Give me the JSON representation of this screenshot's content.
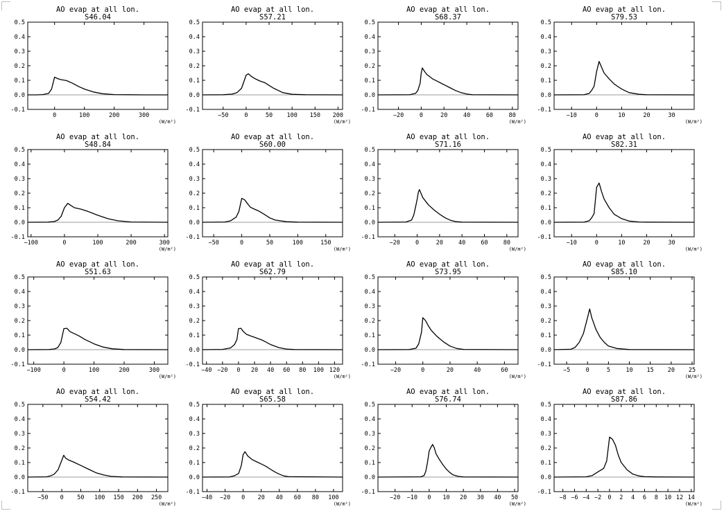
{
  "page": {
    "background": "#ffffff",
    "line_color": "#000000",
    "zero_line_color": "#999999"
  },
  "chart_data": [
    {
      "type": "line",
      "title": "AO evap at all lon.",
      "subtitle": "S46.04",
      "xunit": "(W/m²)",
      "xlim": [
        -90,
        380
      ],
      "ylim": [
        -0.1,
        0.5
      ],
      "xticks": [
        0,
        100,
        200,
        300
      ],
      "yticks": [
        -0.1,
        0.0,
        0.1,
        0.2,
        0.3,
        0.4,
        0.5
      ],
      "x": [
        -90,
        -60,
        -40,
        -20,
        -10,
        0,
        10,
        20,
        40,
        60,
        80,
        100,
        130,
        160,
        200,
        250,
        300,
        380
      ],
      "y": [
        0,
        0,
        0.002,
        0.01,
        0.04,
        0.122,
        0.112,
        0.105,
        0.098,
        0.08,
        0.058,
        0.04,
        0.02,
        0.008,
        0.002,
        0.001,
        0,
        0
      ]
    },
    {
      "type": "line",
      "title": "AO evap at all lon.",
      "subtitle": "S57.21",
      "xunit": "(W/m²)",
      "xlim": [
        -95,
        210
      ],
      "ylim": [
        -0.1,
        0.5
      ],
      "xticks": [
        -50,
        0,
        50,
        100,
        150,
        200
      ],
      "yticks": [
        -0.1,
        0.0,
        0.1,
        0.2,
        0.3,
        0.4,
        0.5
      ],
      "x": [
        -95,
        -50,
        -30,
        -20,
        -10,
        -5,
        0,
        5,
        10,
        20,
        30,
        40,
        50,
        60,
        80,
        100,
        130,
        210
      ],
      "y": [
        0,
        0.001,
        0.005,
        0.015,
        0.045,
        0.09,
        0.135,
        0.145,
        0.13,
        0.11,
        0.095,
        0.085,
        0.065,
        0.045,
        0.015,
        0.004,
        0.001,
        0
      ]
    },
    {
      "type": "line",
      "title": "AO evap at all lon.",
      "subtitle": "S68.37",
      "xunit": "(W/m²)",
      "xlim": [
        -38,
        85
      ],
      "ylim": [
        -0.1,
        0.5
      ],
      "xticks": [
        -20,
        0,
        20,
        40,
        60,
        80
      ],
      "yticks": [
        -0.1,
        0.0,
        0.1,
        0.2,
        0.3,
        0.4,
        0.5
      ],
      "x": [
        -38,
        -10,
        -5,
        -3,
        -1,
        0,
        1,
        3,
        5,
        10,
        15,
        20,
        25,
        30,
        35,
        40,
        45,
        85
      ],
      "y": [
        0,
        0.001,
        0.01,
        0.03,
        0.08,
        0.15,
        0.185,
        0.16,
        0.14,
        0.11,
        0.09,
        0.07,
        0.05,
        0.03,
        0.015,
        0.005,
        0.001,
        0
      ]
    },
    {
      "type": "line",
      "title": "AO evap at all lon.",
      "subtitle": "S79.53",
      "xunit": "(W/m²)",
      "xlim": [
        -17,
        39
      ],
      "ylim": [
        -0.1,
        0.5
      ],
      "xticks": [
        -10,
        0,
        10,
        20,
        30
      ],
      "yticks": [
        -0.1,
        0.0,
        0.1,
        0.2,
        0.3,
        0.4,
        0.5
      ],
      "x": [
        -17,
        -5,
        -3,
        -2,
        -1,
        0,
        1,
        2,
        3,
        5,
        7,
        10,
        13,
        17,
        20,
        39
      ],
      "y": [
        0,
        0.001,
        0.01,
        0.03,
        0.06,
        0.16,
        0.23,
        0.19,
        0.15,
        0.11,
        0.075,
        0.04,
        0.015,
        0.004,
        0.001,
        0
      ]
    },
    {
      "type": "line",
      "title": "AO evap at all lon.",
      "subtitle": "S48.84",
      "xunit": "(W/m²)",
      "xlim": [
        -110,
        310
      ],
      "ylim": [
        -0.1,
        0.5
      ],
      "xticks": [
        -100,
        0,
        100,
        200,
        300
      ],
      "yticks": [
        -0.1,
        0.0,
        0.1,
        0.2,
        0.3,
        0.4,
        0.5
      ],
      "x": [
        -110,
        -50,
        -30,
        -20,
        -10,
        0,
        10,
        20,
        30,
        50,
        70,
        100,
        130,
        160,
        200,
        310
      ],
      "y": [
        0,
        0.001,
        0.005,
        0.015,
        0.04,
        0.1,
        0.13,
        0.115,
        0.1,
        0.09,
        0.075,
        0.048,
        0.025,
        0.01,
        0.002,
        0
      ]
    },
    {
      "type": "line",
      "title": "AO evap at all lon.",
      "subtitle": "S60.00",
      "xunit": "(W/m²)",
      "xlim": [
        -70,
        180
      ],
      "ylim": [
        -0.1,
        0.5
      ],
      "xticks": [
        -50,
        0,
        50,
        100,
        150
      ],
      "yticks": [
        -0.1,
        0.0,
        0.1,
        0.2,
        0.3,
        0.4,
        0.5
      ],
      "x": [
        -70,
        -30,
        -20,
        -10,
        -5,
        0,
        5,
        10,
        15,
        20,
        30,
        40,
        50,
        60,
        80,
        100,
        180
      ],
      "y": [
        0,
        0.002,
        0.01,
        0.035,
        0.075,
        0.165,
        0.155,
        0.13,
        0.105,
        0.095,
        0.078,
        0.055,
        0.03,
        0.015,
        0.004,
        0.001,
        0
      ]
    },
    {
      "type": "line",
      "title": "AO evap at all lon.",
      "subtitle": "S71.16",
      "xunit": "(W/m²)",
      "xlim": [
        -35,
        90
      ],
      "ylim": [
        -0.1,
        0.5
      ],
      "xticks": [
        -20,
        0,
        20,
        40,
        60,
        80
      ],
      "yticks": [
        -0.1,
        0.0,
        0.1,
        0.2,
        0.3,
        0.4,
        0.5
      ],
      "x": [
        -35,
        -10,
        -5,
        -3,
        -1,
        0,
        1,
        2,
        5,
        10,
        15,
        20,
        25,
        30,
        35,
        40,
        90
      ],
      "y": [
        0,
        0.002,
        0.015,
        0.05,
        0.12,
        0.16,
        0.205,
        0.225,
        0.17,
        0.12,
        0.085,
        0.055,
        0.03,
        0.013,
        0.004,
        0.001,
        0
      ]
    },
    {
      "type": "line",
      "title": "AO evap at all lon.",
      "subtitle": "S82.31",
      "xunit": "(W/m²)",
      "xlim": [
        -17,
        39
      ],
      "ylim": [
        -0.1,
        0.5
      ],
      "xticks": [
        -10,
        0,
        10,
        20,
        30
      ],
      "yticks": [
        -0.1,
        0.0,
        0.1,
        0.2,
        0.3,
        0.4,
        0.5
      ],
      "x": [
        -17,
        -5,
        -3,
        -2,
        -1,
        0,
        1,
        2,
        3,
        5,
        7,
        10,
        13,
        17,
        20,
        39
      ],
      "y": [
        0,
        0.001,
        0.01,
        0.03,
        0.06,
        0.24,
        0.27,
        0.21,
        0.16,
        0.1,
        0.055,
        0.025,
        0.008,
        0.002,
        0.001,
        0
      ]
    },
    {
      "type": "line",
      "title": "AO evap at all lon.",
      "subtitle": "S51.63",
      "xunit": "(W/m²)",
      "xlim": [
        -120,
        345
      ],
      "ylim": [
        -0.1,
        0.5
      ],
      "xticks": [
        -100,
        0,
        100,
        200,
        300
      ],
      "yticks": [
        -0.1,
        0.0,
        0.1,
        0.2,
        0.3,
        0.4,
        0.5
      ],
      "x": [
        -120,
        -50,
        -30,
        -20,
        -10,
        0,
        10,
        20,
        30,
        50,
        70,
        100,
        130,
        160,
        200,
        345
      ],
      "y": [
        0,
        0.001,
        0.005,
        0.015,
        0.05,
        0.145,
        0.147,
        0.125,
        0.115,
        0.095,
        0.07,
        0.04,
        0.018,
        0.006,
        0.001,
        0
      ]
    },
    {
      "type": "line",
      "title": "AO evap at all lon.",
      "subtitle": "S62.79",
      "xunit": "(W/m²)",
      "xlim": [
        -45,
        130
      ],
      "ylim": [
        -0.1,
        0.5
      ],
      "xticks": [
        -40,
        -20,
        0,
        20,
        40,
        60,
        80,
        100,
        120
      ],
      "yticks": [
        -0.1,
        0.0,
        0.1,
        0.2,
        0.3,
        0.4,
        0.5
      ],
      "x": [
        -45,
        -20,
        -10,
        -5,
        -2,
        0,
        3,
        6,
        10,
        15,
        20,
        30,
        40,
        50,
        60,
        70,
        130
      ],
      "y": [
        0,
        0.002,
        0.012,
        0.035,
        0.07,
        0.145,
        0.147,
        0.125,
        0.105,
        0.095,
        0.085,
        0.065,
        0.035,
        0.015,
        0.004,
        0.001,
        0
      ]
    },
    {
      "type": "line",
      "title": "AO evap at all lon.",
      "subtitle": "S73.95",
      "xunit": "(W/m²)",
      "xlim": [
        -33,
        70
      ],
      "ylim": [
        -0.1,
        0.5
      ],
      "xticks": [
        -20,
        0,
        20,
        40,
        60
      ],
      "yticks": [
        -0.1,
        0.0,
        0.1,
        0.2,
        0.3,
        0.4,
        0.5
      ],
      "x": [
        -33,
        -10,
        -5,
        -3,
        -1,
        0,
        1,
        2,
        4,
        6,
        10,
        15,
        20,
        25,
        30,
        70
      ],
      "y": [
        0,
        0.001,
        0.01,
        0.04,
        0.12,
        0.22,
        0.21,
        0.2,
        0.165,
        0.135,
        0.095,
        0.055,
        0.025,
        0.008,
        0.002,
        0
      ]
    },
    {
      "type": "line",
      "title": "AO evap at all lon.",
      "subtitle": "S85.10",
      "xunit": "(W/m²)",
      "xlim": [
        -8,
        25.5
      ],
      "ylim": [
        -0.1,
        0.5
      ],
      "xticks": [
        -5,
        0,
        5,
        10,
        15,
        20,
        25
      ],
      "yticks": [
        -0.1,
        0.0,
        0.1,
        0.2,
        0.3,
        0.4,
        0.5
      ],
      "x": [
        -8,
        -4,
        -3,
        -2,
        -1,
        0,
        0.5,
        1,
        2,
        3,
        4,
        5,
        7,
        10,
        25.5
      ],
      "y": [
        0,
        0.003,
        0.015,
        0.05,
        0.11,
        0.22,
        0.28,
        0.22,
        0.14,
        0.085,
        0.05,
        0.025,
        0.008,
        0.001,
        0
      ]
    },
    {
      "type": "line",
      "title": "AO evap at all lon.",
      "subtitle": "S54.42",
      "xunit": "(W/m²)",
      "xlim": [
        -90,
        280
      ],
      "ylim": [
        -0.1,
        0.5
      ],
      "xticks": [
        -50,
        0,
        50,
        100,
        150,
        200,
        250
      ],
      "yticks": [
        -0.1,
        0.0,
        0.1,
        0.2,
        0.3,
        0.4,
        0.5
      ],
      "x": [
        -90,
        -40,
        -30,
        -20,
        -10,
        0,
        5,
        10,
        20,
        30,
        50,
        70,
        90,
        110,
        130,
        160,
        280
      ],
      "y": [
        0,
        0.002,
        0.008,
        0.02,
        0.05,
        0.115,
        0.15,
        0.13,
        0.115,
        0.105,
        0.08,
        0.055,
        0.03,
        0.015,
        0.005,
        0.001,
        0
      ]
    },
    {
      "type": "line",
      "title": "AO evap at all lon.",
      "subtitle": "S65.58",
      "xunit": "(W/m²)",
      "xlim": [
        -45,
        110
      ],
      "ylim": [
        -0.1,
        0.5
      ],
      "xticks": [
        -40,
        -20,
        0,
        20,
        40,
        60,
        80,
        100
      ],
      "yticks": [
        -0.1,
        0.0,
        0.1,
        0.2,
        0.3,
        0.4,
        0.5
      ],
      "x": [
        -45,
        -15,
        -10,
        -5,
        -2,
        0,
        2,
        5,
        10,
        15,
        20,
        25,
        30,
        35,
        40,
        45,
        50,
        110
      ],
      "y": [
        0,
        0.001,
        0.008,
        0.025,
        0.08,
        0.155,
        0.175,
        0.145,
        0.12,
        0.105,
        0.09,
        0.075,
        0.055,
        0.035,
        0.02,
        0.008,
        0.003,
        0
      ]
    },
    {
      "type": "line",
      "title": "AO evap at all lon.",
      "subtitle": "S76.74",
      "xunit": "(W/m²)",
      "xlim": [
        -30,
        52
      ],
      "ylim": [
        -0.1,
        0.5
      ],
      "xticks": [
        -20,
        -10,
        0,
        10,
        20,
        30,
        40,
        50
      ],
      "yticks": [
        -0.1,
        0.0,
        0.1,
        0.2,
        0.3,
        0.4,
        0.5
      ],
      "x": [
        -30,
        -5,
        -3,
        -2,
        -1,
        0,
        1,
        2,
        3,
        4,
        6,
        8,
        10,
        12,
        14,
        17,
        20,
        52
      ],
      "y": [
        0,
        0.002,
        0.01,
        0.04,
        0.1,
        0.18,
        0.205,
        0.225,
        0.2,
        0.16,
        0.12,
        0.085,
        0.055,
        0.032,
        0.015,
        0.005,
        0.001,
        0
      ]
    },
    {
      "type": "line",
      "title": "AO evap at all lon.",
      "subtitle": "S87.86",
      "xunit": "(W/m²)",
      "xlim": [
        -9.5,
        14.5
      ],
      "ylim": [
        -0.1,
        0.5
      ],
      "xticks": [
        -8,
        -6,
        -4,
        -2,
        0,
        2,
        4,
        6,
        8,
        10,
        12,
        14
      ],
      "yticks": [
        -0.1,
        0.0,
        0.1,
        0.2,
        0.3,
        0.4,
        0.5
      ],
      "x": [
        -9.5,
        -4,
        -3,
        -2,
        -1,
        -0.5,
        0,
        0.5,
        1,
        1.5,
        2,
        3,
        4,
        5,
        6,
        8,
        14.5
      ],
      "y": [
        0,
        0.002,
        0.01,
        0.035,
        0.06,
        0.11,
        0.275,
        0.26,
        0.22,
        0.15,
        0.1,
        0.05,
        0.02,
        0.008,
        0.003,
        0.001,
        0
      ]
    }
  ]
}
